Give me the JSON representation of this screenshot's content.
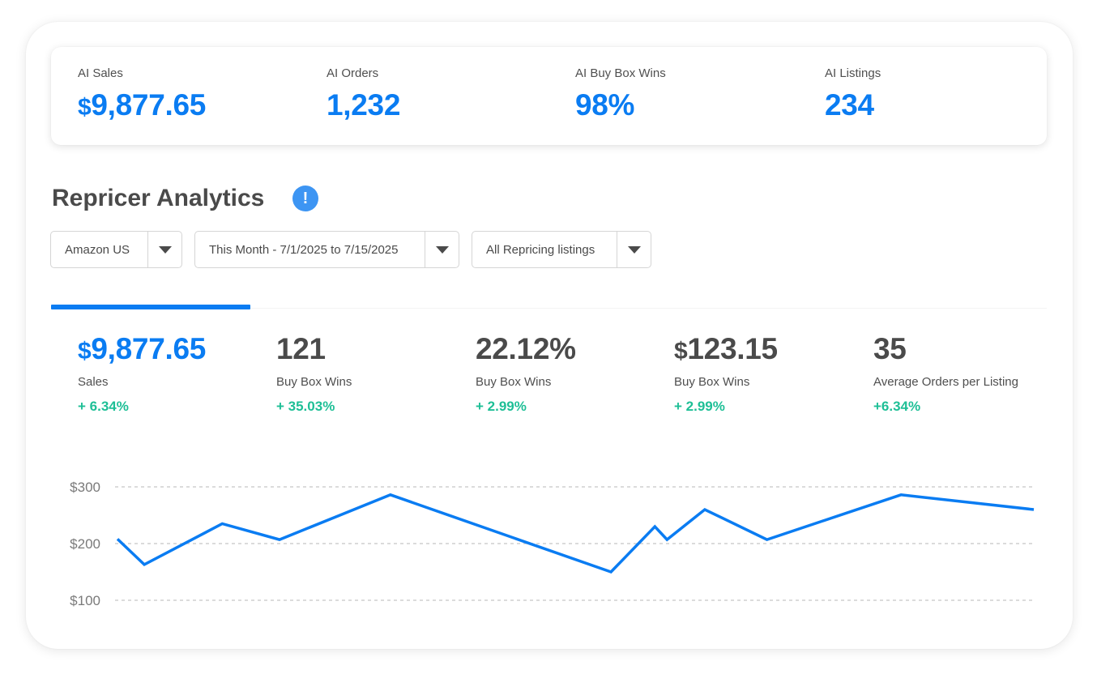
{
  "kpis": [
    {
      "label": "AI Sales",
      "currency": "$",
      "value": "9,877.65"
    },
    {
      "label": "AI Orders",
      "currency": "",
      "value": "1,232"
    },
    {
      "label": "AI Buy Box Wins",
      "currency": "",
      "value": "98%"
    },
    {
      "label": "AI Listings",
      "currency": "",
      "value": "234"
    }
  ],
  "section": {
    "title": "Repricer Analytics",
    "info_icon": "exclamation-info-icon",
    "info_glyph": "!"
  },
  "filters": {
    "marketplace": "Amazon US",
    "date_range": "This Month - 7/1/2025 to 7/15/2025",
    "listings": "All Repricing listings"
  },
  "metrics": [
    {
      "currency": "$",
      "value": "9,877.65",
      "label": "Sales",
      "change": "+ 6.34%",
      "active": true
    },
    {
      "currency": "",
      "value": "121",
      "label": "Buy Box Wins",
      "change": "+ 35.03%",
      "active": false
    },
    {
      "currency": "",
      "value": "22.12%",
      "label": "Buy Box Wins",
      "change": "+ 2.99%",
      "active": false
    },
    {
      "currency": "$",
      "value": "123.15",
      "label": "Buy Box Wins",
      "change": "+ 2.99%",
      "active": false
    },
    {
      "currency": "",
      "value": "35",
      "label": "Average Orders per Listing",
      "change": "+6.34%",
      "active": false
    }
  ],
  "colors": {
    "accent": "#0a7cf2",
    "positive": "#1ebf96",
    "text": "#4a4a4a",
    "info": "#3d95f3"
  },
  "chart_data": {
    "type": "line",
    "title": "",
    "xlabel": "",
    "ylabel": "",
    "ylim": [
      100,
      300
    ],
    "yticks": [
      300,
      200,
      100
    ],
    "ytick_labels": [
      "$300",
      "$200",
      "$100"
    ],
    "grid": true,
    "series": [
      {
        "values": [
          208,
          163,
          235,
          207,
          286,
          150,
          230,
          207,
          260,
          207,
          286,
          260
        ]
      }
    ],
    "x": [
      0,
      2.2,
      8.6,
      13.3,
      22.4,
      40.5,
      44.1,
      45.1,
      48.2,
      53.3,
      64.3,
      75.2
    ]
  }
}
